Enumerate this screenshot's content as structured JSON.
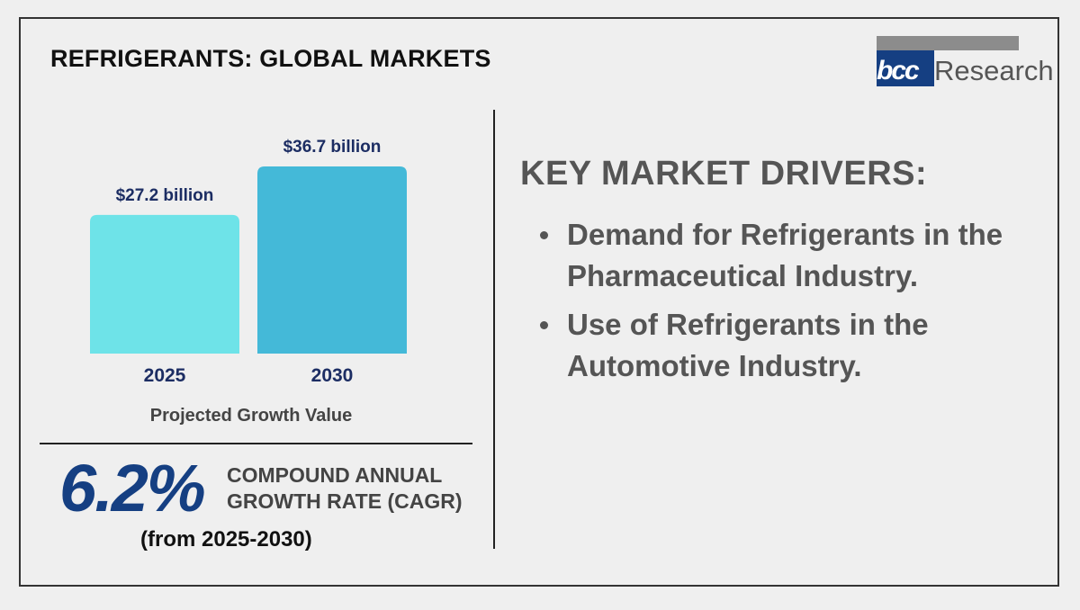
{
  "title": "REFRIGERANTS: GLOBAL MARKETS",
  "logo": {
    "mark": "bcc",
    "word": "Research",
    "brand_blue": "#153f82",
    "brand_gray": "#8c8c8c"
  },
  "chart_data": {
    "type": "bar",
    "categories": [
      "2025",
      "2030"
    ],
    "values": [
      27.2,
      36.7
    ],
    "data_labels": [
      "$27.2 billion",
      "$36.7 billion"
    ],
    "colors": [
      "#6ee3e8",
      "#44b9d8"
    ],
    "xlabel": "Projected Growth Value",
    "ylabel": "",
    "ylim": [
      0,
      36.7
    ],
    "grid": false
  },
  "cagr": {
    "value": "6.2%",
    "label_line1": "COMPOUND ANNUAL",
    "label_line2": "GROWTH RATE (CAGR)",
    "period": "(from 2025-2030)"
  },
  "drivers": {
    "title": "KEY MARKET DRIVERS:",
    "items": [
      {
        "line1": "Demand for Refrigerants in the",
        "line2": "Pharmaceutical Industry."
      },
      {
        "line1": "Use of Refrigerants in the",
        "line2": "Automotive Industry."
      }
    ]
  },
  "colors": {
    "label_navy": "#1c2d63",
    "text_gray": "#555555",
    "background": "#efefef"
  }
}
